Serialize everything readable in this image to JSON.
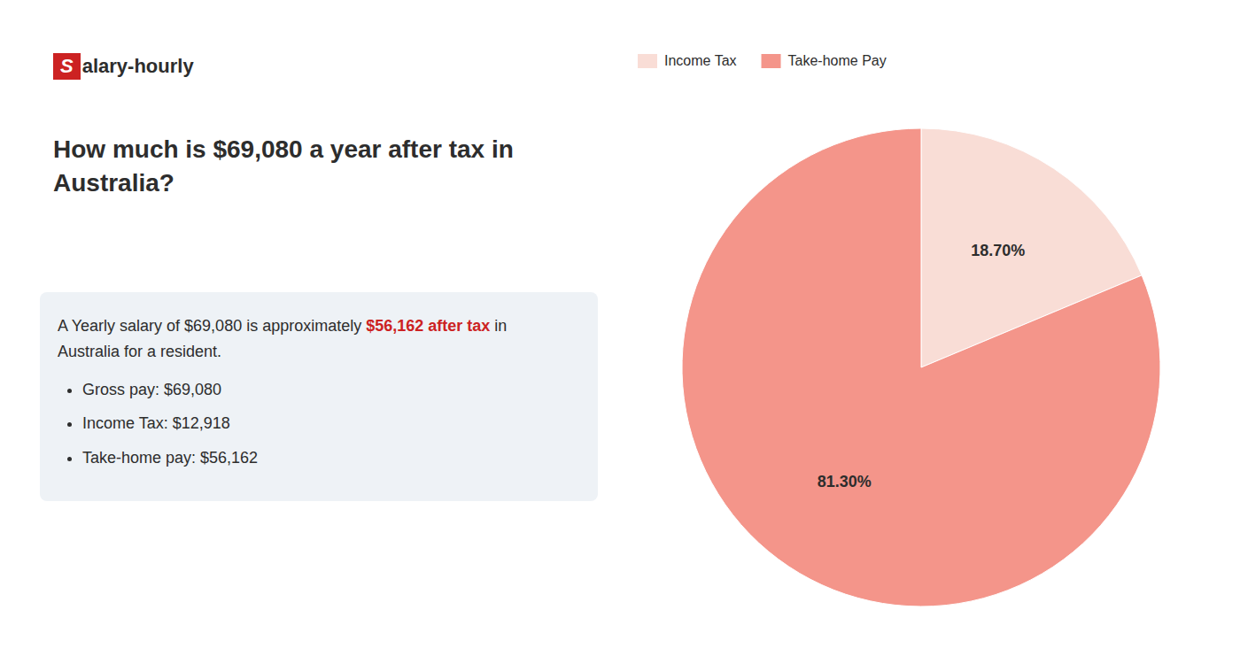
{
  "chart_data": {
    "type": "pie",
    "title": "How much is $69,080 a year after tax in Australia?",
    "annotations": [
      [
        {
          "text": "S",
          "color": "#cc2222"
        },
        {
          "text": "alary-hourly"
        }
      ],
      [
        {
          "text": "A Yearly salary of $69,080 is approximately "
        },
        {
          "text": "$56,162 after tax",
          "color": "#cc2222"
        },
        {
          "text": " in"
        }
      ],
      [
        {
          "text": "Australia for a resident."
        }
      ],
      [
        {
          "text": "Gross pay: $69,080"
        }
      ],
      [
        {
          "text": "Income Tax: $12,918"
        }
      ],
      [
        {
          "text": "Take-home pay: $56,162"
        }
      ]
    ],
    "categories": [
      "Income Tax",
      "Take-home Pay"
    ],
    "values": [
      18.7,
      81.3
    ],
    "value_labels": [
      "18.70%",
      "81.30%"
    ],
    "colors": [
      "#f9ddd6",
      "#f4958a"
    ],
    "data_labels": true,
    "legend": "upper left"
  }
}
